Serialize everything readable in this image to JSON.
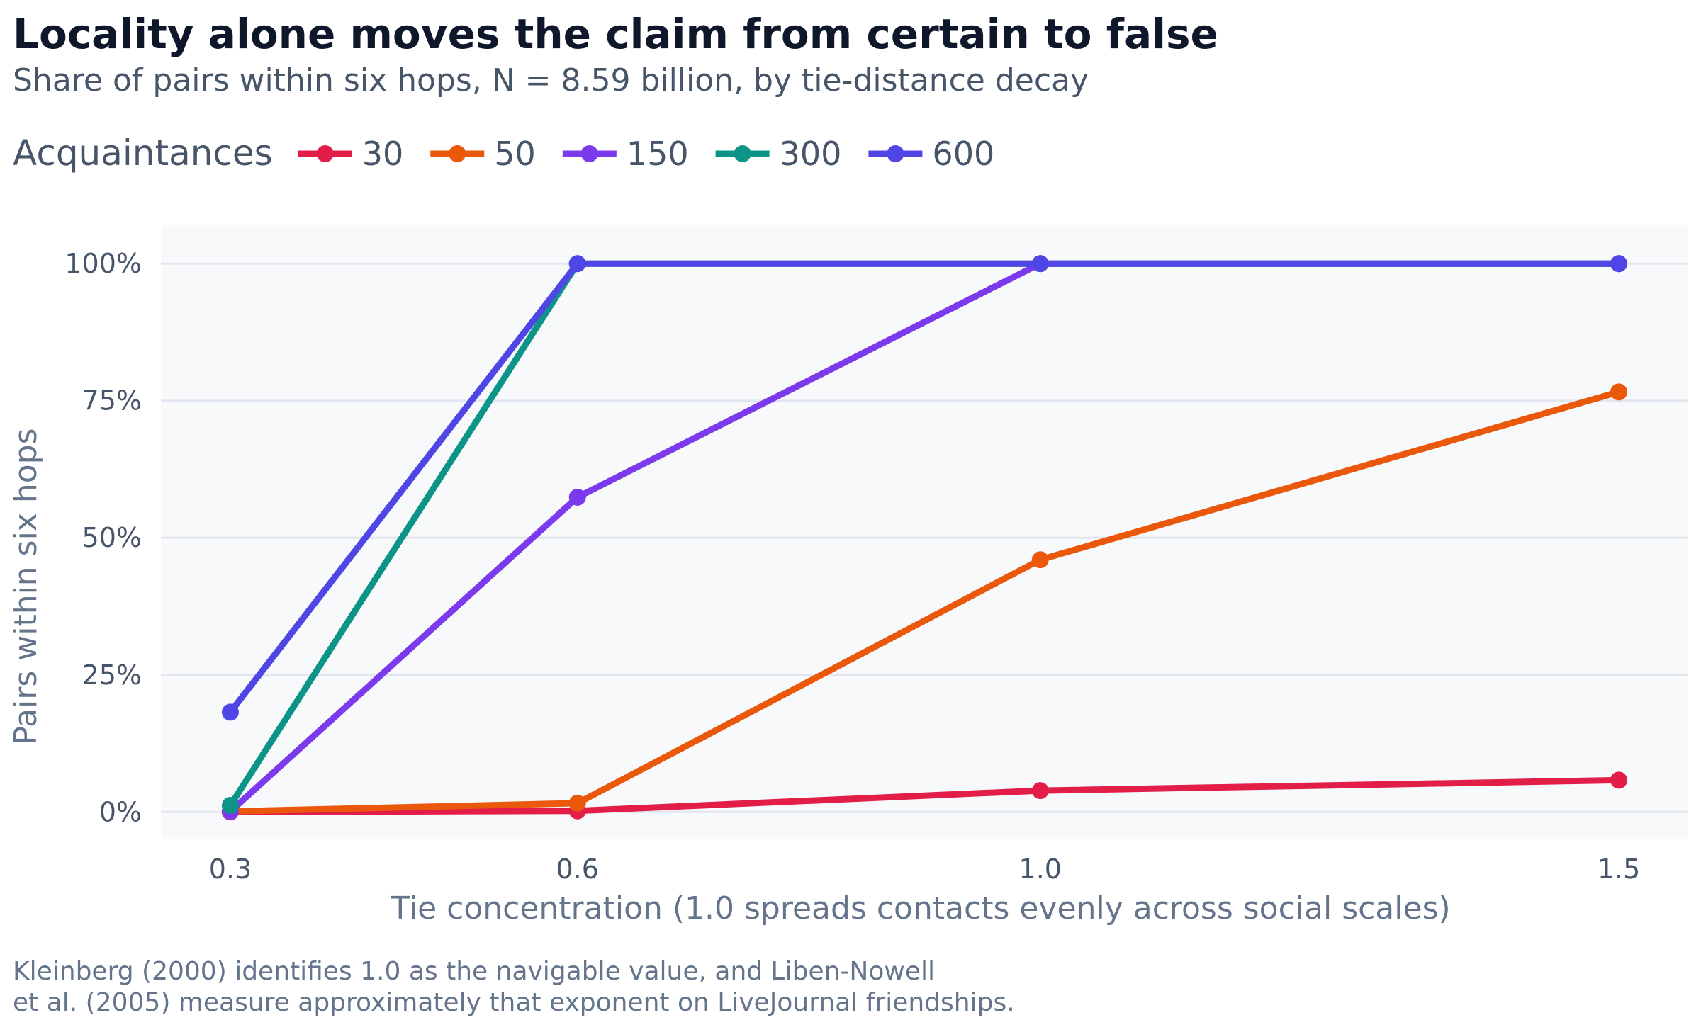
{
  "chart_data": {
    "type": "line",
    "title": "Locality alone moves the claim from certain to false",
    "subtitle": "Share of pairs within six hops, N = 8.59 billion, by tie-distance decay",
    "xlabel": "Tie concentration (1.0 spreads contacts evenly across social scales)",
    "ylabel": "Pairs within six hops",
    "x": [
      0.3,
      0.6,
      1.0,
      1.5
    ],
    "x_tick_labels": [
      "0.3",
      "0.6",
      "1.0",
      "1.5"
    ],
    "y_ticks": [
      0,
      25,
      50,
      75,
      100
    ],
    "y_tick_labels": [
      "0%",
      "25%",
      "50%",
      "75%",
      "100%"
    ],
    "xlim": [
      0.24,
      1.56
    ],
    "ylim": [
      -5,
      107
    ],
    "grid": "horizontal",
    "legend": {
      "title": "Acquaintances",
      "placement": "top-left"
    },
    "series": [
      {
        "name": "30",
        "color": "#e11d48",
        "values": [
          0,
          0.2,
          3.9,
          5.8
        ]
      },
      {
        "name": "50",
        "color": "#ea580c",
        "values": [
          0.1,
          1.6,
          46,
          76.6
        ]
      },
      {
        "name": "150",
        "color": "#7c3aed",
        "values": [
          0.1,
          57.4,
          100,
          100
        ]
      },
      {
        "name": "300",
        "color": "#0d9488",
        "values": [
          1.2,
          100,
          100,
          100
        ]
      },
      {
        "name": "600",
        "color": "#4f46e5",
        "values": [
          18.2,
          100,
          100,
          100
        ]
      }
    ],
    "caption": [
      "Kleinberg (2000) identifies 1.0 as the navigable value, and Liben-Nowell",
      "et al. (2005) measure approximately that exponent on LiveJournal friendships."
    ]
  },
  "colors": {
    "plot_background": "#f8f9fb",
    "gridline": "#e2e5ef"
  }
}
